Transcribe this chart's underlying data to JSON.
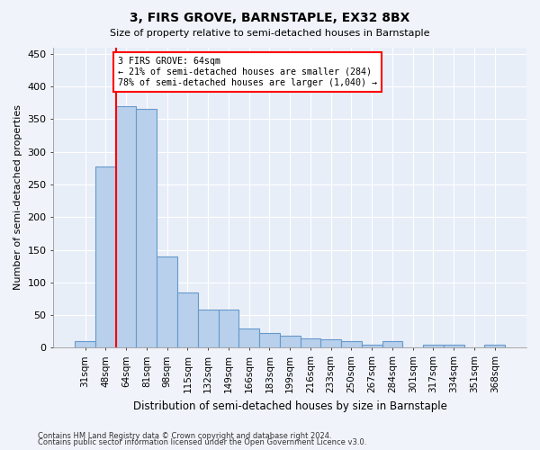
{
  "title": "3, FIRS GROVE, BARNSTAPLE, EX32 8BX",
  "subtitle": "Size of property relative to semi-detached houses in Barnstaple",
  "xlabel": "Distribution of semi-detached houses by size in Barnstaple",
  "ylabel": "Number of semi-detached properties",
  "categories": [
    "31sqm",
    "48sqm",
    "64sqm",
    "81sqm",
    "98sqm",
    "115sqm",
    "132sqm",
    "149sqm",
    "166sqm",
    "183sqm",
    "199sqm",
    "216sqm",
    "233sqm",
    "250sqm",
    "267sqm",
    "284sqm",
    "301sqm",
    "317sqm",
    "334sqm",
    "351sqm",
    "368sqm"
  ],
  "values": [
    10,
    278,
    370,
    365,
    140,
    85,
    58,
    58,
    30,
    23,
    18,
    15,
    13,
    10,
    5,
    10,
    0,
    4,
    4,
    0,
    4
  ],
  "bar_color": "#b8d0eb",
  "bar_edge_color": "#6699cc",
  "vline_x_index": 2,
  "vline_color": "red",
  "annotation_text": "3 FIRS GROVE: 64sqm\n← 21% of semi-detached houses are smaller (284)\n78% of semi-detached houses are larger (1,040) →",
  "annotation_box_color": "white",
  "annotation_box_edge_color": "red",
  "ylim": [
    0,
    460
  ],
  "yticks": [
    0,
    50,
    100,
    150,
    200,
    250,
    300,
    350,
    400,
    450
  ],
  "footer_line1": "Contains HM Land Registry data © Crown copyright and database right 2024.",
  "footer_line2": "Contains public sector information licensed under the Open Government Licence v3.0.",
  "bg_color": "#f0f4fa",
  "plot_bg_color": "#e8eef8",
  "grid_color": "#ffffff"
}
